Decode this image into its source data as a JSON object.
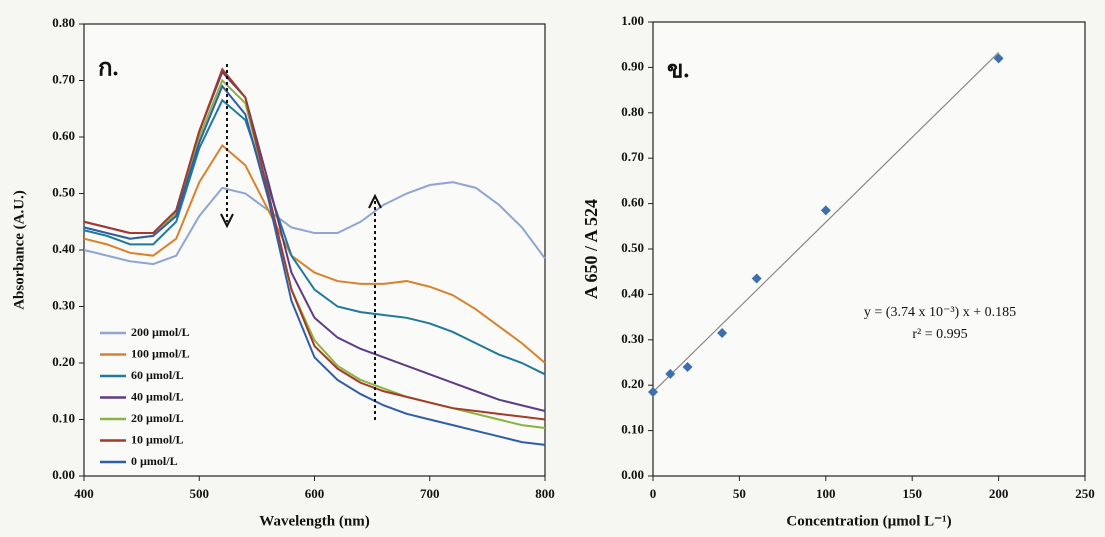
{
  "chart_data": [
    {
      "type": "line",
      "panel_label": "ก.",
      "xlabel": "Wavelength (nm)",
      "ylabel": "Absorbance (A.U.)",
      "x": [
        400,
        420,
        440,
        460,
        480,
        500,
        520,
        540,
        560,
        580,
        600,
        620,
        640,
        660,
        680,
        700,
        720,
        740,
        760,
        780,
        800
      ],
      "xlim": [
        400,
        800
      ],
      "xticks": [
        400,
        500,
        600,
        700,
        800
      ],
      "ylim": [
        0,
        0.8
      ],
      "yticks": [
        {
          "value": 0,
          "label": "0.00"
        },
        {
          "value": 0.1,
          "label": "0.10"
        },
        {
          "value": 0.2,
          "label": "0.20"
        },
        {
          "value": 0.3,
          "label": "0.30"
        },
        {
          "value": 0.4,
          "label": "0.40"
        },
        {
          "value": 0.5,
          "label": "0.50"
        },
        {
          "value": 0.6,
          "label": "0.60"
        },
        {
          "value": 0.7,
          "label": "0.70"
        },
        {
          "value": 0.8,
          "label": "0.80"
        }
      ],
      "legend": "lower left",
      "series": [
        {
          "name": "200 µmol/L",
          "color": "#8ea6d0",
          "values": [
            0.4,
            0.39,
            0.38,
            0.375,
            0.39,
            0.46,
            0.51,
            0.5,
            0.47,
            0.44,
            0.43,
            0.43,
            0.45,
            0.48,
            0.5,
            0.515,
            0.52,
            0.51,
            0.48,
            0.44,
            0.385
          ]
        },
        {
          "name": "100 µmol/L",
          "color": "#d9822b",
          "values": [
            0.42,
            0.41,
            0.395,
            0.39,
            0.42,
            0.52,
            0.585,
            0.55,
            0.47,
            0.39,
            0.36,
            0.345,
            0.34,
            0.34,
            0.345,
            0.335,
            0.32,
            0.295,
            0.265,
            0.235,
            0.2
          ]
        },
        {
          "name": "60 µmol/L",
          "color": "#1f7a9a",
          "values": [
            0.435,
            0.425,
            0.41,
            0.41,
            0.45,
            0.58,
            0.665,
            0.63,
            0.51,
            0.39,
            0.33,
            0.3,
            0.29,
            0.285,
            0.28,
            0.27,
            0.255,
            0.235,
            0.215,
            0.2,
            0.18
          ]
        },
        {
          "name": "40 µmol/L",
          "color": "#5e3c85",
          "values": [
            0.45,
            0.44,
            0.43,
            0.43,
            0.47,
            0.61,
            0.715,
            0.67,
            0.52,
            0.36,
            0.28,
            0.245,
            0.225,
            0.21,
            0.195,
            0.18,
            0.165,
            0.15,
            0.135,
            0.125,
            0.115
          ]
        },
        {
          "name": "20 µmol/L",
          "color": "#8ab440",
          "values": [
            0.44,
            0.43,
            0.42,
            0.425,
            0.465,
            0.6,
            0.7,
            0.66,
            0.5,
            0.33,
            0.24,
            0.195,
            0.17,
            0.155,
            0.14,
            0.13,
            0.12,
            0.11,
            0.1,
            0.09,
            0.085
          ]
        },
        {
          "name": "10 µmol/L",
          "color": "#a33a2a",
          "values": [
            0.45,
            0.44,
            0.43,
            0.43,
            0.47,
            0.61,
            0.72,
            0.67,
            0.5,
            0.33,
            0.23,
            0.19,
            0.165,
            0.15,
            0.14,
            0.13,
            0.12,
            0.115,
            0.11,
            0.105,
            0.1
          ]
        },
        {
          "name": "0 µmol/L",
          "color": "#2f5ea8",
          "values": [
            0.44,
            0.43,
            0.42,
            0.425,
            0.46,
            0.59,
            0.69,
            0.64,
            0.49,
            0.31,
            0.21,
            0.17,
            0.145,
            0.125,
            0.11,
            0.1,
            0.09,
            0.08,
            0.07,
            0.06,
            0.055
          ]
        }
      ]
    },
    {
      "type": "scatter",
      "panel_label": "ข.",
      "xlabel": "Concentration (µmol L⁻¹)",
      "ylabel": "A 650 / A 524",
      "x": [
        0,
        10,
        20,
        40,
        60,
        100,
        200
      ],
      "values": [
        0.185,
        0.225,
        0.24,
        0.315,
        0.435,
        0.585,
        0.92
      ],
      "color": "#3d6fae",
      "xlim": [
        0,
        250
      ],
      "xticks": [
        0,
        50,
        100,
        150,
        200,
        250
      ],
      "ylim": [
        0,
        1
      ],
      "yticks": [
        {
          "value": 0,
          "label": "0.00"
        },
        {
          "value": 0.1,
          "label": "0.10"
        },
        {
          "value": 0.2,
          "label": "0.20"
        },
        {
          "value": 0.3,
          "label": "0.30"
        },
        {
          "value": 0.4,
          "label": "0.40"
        },
        {
          "value": 0.5,
          "label": "0.50"
        },
        {
          "value": 0.6,
          "label": "0.60"
        },
        {
          "value": 0.7,
          "label": "0.70"
        },
        {
          "value": 0.8,
          "label": "0.80"
        },
        {
          "value": 0.9,
          "label": "0.90"
        },
        {
          "value": 1,
          "label": "1.00"
        }
      ],
      "fit": {
        "slope": 0.00374,
        "intercept": 0.185,
        "color": "#888888"
      },
      "equation": "y = (3.74 x 10⁻³) x + 0.185",
      "r2": "r² = 0.995"
    }
  ]
}
